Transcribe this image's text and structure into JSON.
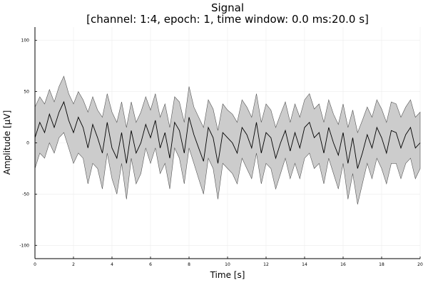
{
  "chart_data": {
    "type": "line",
    "title": "Signal",
    "subtitle": "[channel: 1:4, epoch: 1, time window: 0.0 ms:20.0 s]",
    "xlabel": "Time [s]",
    "ylabel": "Amplitude [μV]",
    "xlim": [
      0,
      20
    ],
    "ylim": [
      -113,
      113
    ],
    "x_ticks": [
      0,
      2,
      4,
      6,
      8,
      10,
      12,
      14,
      16,
      18,
      20
    ],
    "x_tick_labels": [
      "0",
      "2",
      "4",
      "6",
      "8",
      "10",
      "12",
      "14",
      "16",
      "18",
      "20"
    ],
    "y_ticks": [
      -100,
      -50,
      0,
      50,
      100
    ],
    "y_tick_labels": [
      "-100",
      "-50",
      "0",
      "50",
      "100"
    ],
    "grid": true,
    "legend": "none",
    "x": [
      0,
      0.25,
      0.5,
      0.75,
      1,
      1.25,
      1.5,
      1.75,
      2,
      2.25,
      2.5,
      2.75,
      3,
      3.25,
      3.5,
      3.75,
      4,
      4.25,
      4.5,
      4.75,
      5,
      5.25,
      5.5,
      5.75,
      6,
      6.25,
      6.5,
      6.75,
      7,
      7.25,
      7.5,
      7.75,
      8,
      8.25,
      8.5,
      8.75,
      9,
      9.25,
      9.5,
      9.75,
      10,
      10.25,
      10.5,
      10.75,
      11,
      11.25,
      11.5,
      11.75,
      12,
      12.25,
      12.5,
      12.75,
      13,
      13.25,
      13.5,
      13.75,
      14,
      14.25,
      14.5,
      14.75,
      15,
      15.25,
      15.5,
      15.75,
      16,
      16.25,
      16.5,
      16.75,
      17,
      17.25,
      17.5,
      17.75,
      18,
      18.25,
      18.5,
      18.75,
      19,
      19.25,
      19.5,
      19.75,
      20
    ],
    "series": [
      {
        "values": [
          5,
          20,
          10,
          28,
          15,
          30,
          40,
          22,
          10,
          25,
          15,
          -5,
          18,
          5,
          -10,
          20,
          -5,
          -15,
          10,
          -20,
          12,
          -10,
          0,
          18,
          5,
          22,
          -5,
          10,
          -15,
          20,
          12,
          -10,
          25,
          8,
          -5,
          -18,
          15,
          5,
          -20,
          10,
          5,
          0,
          -10,
          15,
          8,
          -5,
          20,
          -10,
          10,
          5,
          -15,
          0,
          12,
          -8,
          10,
          -5,
          15,
          20,
          5,
          10,
          -10,
          15,
          0,
          -12,
          10,
          -20,
          5,
          -25,
          -10,
          8,
          -5,
          15,
          5,
          -10,
          12,
          10,
          -5,
          8,
          15,
          -5,
          0
        ],
        "lower": [
          -25,
          -10,
          -15,
          0,
          -10,
          5,
          10,
          -5,
          -20,
          -10,
          -15,
          -40,
          -20,
          -25,
          -45,
          -10,
          -35,
          -50,
          -20,
          -55,
          -15,
          -40,
          -30,
          -5,
          -20,
          -5,
          -30,
          -20,
          -45,
          -5,
          -15,
          -40,
          -5,
          -20,
          -35,
          -50,
          -15,
          -25,
          -55,
          -20,
          -25,
          -30,
          -40,
          -15,
          -25,
          -35,
          -10,
          -40,
          -20,
          -25,
          -45,
          -30,
          -15,
          -35,
          -20,
          -35,
          -15,
          -10,
          -25,
          -20,
          -40,
          -15,
          -30,
          -45,
          -20,
          -55,
          -30,
          -60,
          -40,
          -20,
          -35,
          -15,
          -25,
          -40,
          -20,
          -20,
          -35,
          -20,
          -15,
          -35,
          -25
        ],
        "upper": [
          35,
          45,
          38,
          52,
          40,
          55,
          65,
          48,
          38,
          50,
          42,
          30,
          45,
          32,
          25,
          48,
          30,
          20,
          40,
          15,
          40,
          20,
          30,
          45,
          32,
          48,
          25,
          38,
          15,
          45,
          40,
          20,
          55,
          35,
          25,
          15,
          42,
          33,
          12,
          38,
          32,
          28,
          20,
          42,
          35,
          25,
          48,
          20,
          38,
          32,
          15,
          28,
          40,
          20,
          38,
          25,
          42,
          48,
          33,
          38,
          20,
          42,
          28,
          18,
          38,
          15,
          32,
          10,
          22,
          35,
          25,
          42,
          33,
          20,
          40,
          38,
          25,
          35,
          42,
          25,
          30
        ]
      }
    ]
  },
  "colors": {
    "line": "#000000",
    "band": "#cccccc",
    "band_edge": "#555555",
    "grid": "#ececec",
    "axis": "#000000",
    "background": "#ffffff"
  }
}
